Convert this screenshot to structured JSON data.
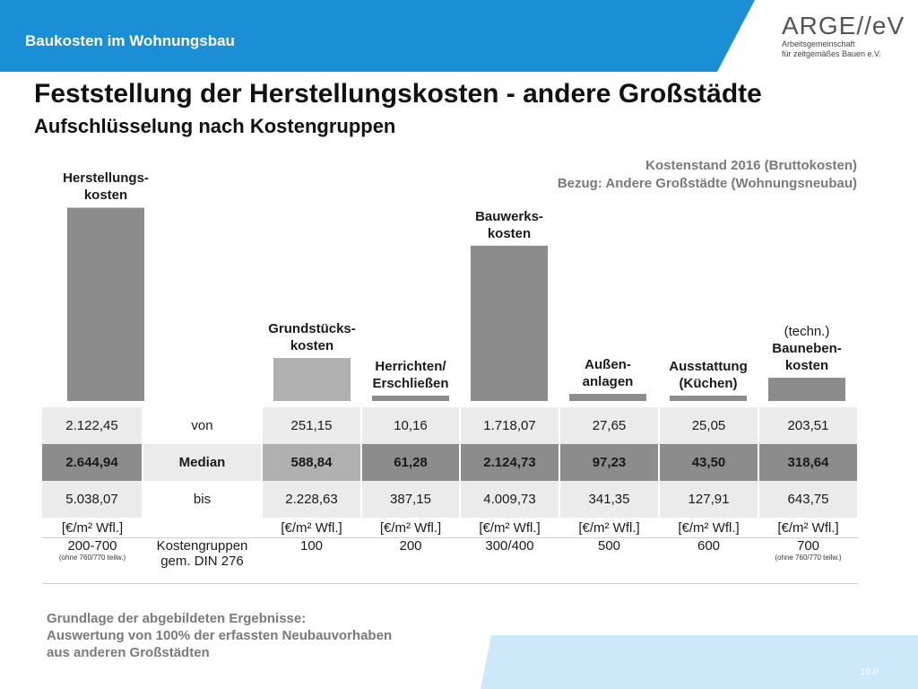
{
  "header": {
    "section_title": "Baukosten im Wohnungsbau",
    "logo_main": "ARGE//eV",
    "logo_line1": "Arbeitsgemeinschaft",
    "logo_line2": "für zeitgemäßes Bauen e.V.",
    "accent_color": "#1a8fd6"
  },
  "title": "Feststellung der Herstellungskosten - andere Großstädte",
  "subtitle": "Aufschlüsselung nach Kostengruppen",
  "meta_line1": "Kostenstand 2016 (Bruttokosten)",
  "meta_line2": "Bezug: Andere Großstädte (Wohnungsneubau)",
  "chart_data": {
    "type": "bar",
    "categories": [
      {
        "prefix": "",
        "line1": "Herstellungs-",
        "line2": "kosten"
      },
      {
        "prefix": "",
        "line1": "Grundstücks-",
        "line2": "kosten"
      },
      {
        "prefix": "",
        "line1": "Herrichten/",
        "line2": "Erschließen"
      },
      {
        "prefix": "",
        "line1": "Bauwerks-",
        "line2": "kosten"
      },
      {
        "prefix": "",
        "line1": "Außen-",
        "line2": "anlagen"
      },
      {
        "prefix": "",
        "line1": "Ausstattung",
        "line2": "(Küchen)"
      },
      {
        "prefix": "(techn.)",
        "line1": "Bauneben-",
        "line2": "kosten"
      }
    ],
    "values": [
      2644.94,
      588.84,
      61.28,
      2124.73,
      97.23,
      43.5,
      318.64
    ],
    "ylim": [
      0,
      2700
    ],
    "bar_colors": [
      "#8c8c8c",
      "#b0b0b0",
      "#8c8c8c",
      "#8c8c8c",
      "#8c8c8c",
      "#8c8c8c",
      "#8c8c8c"
    ]
  },
  "table": {
    "row_von": {
      "total": "2.122,45",
      "label": "von",
      "cells": [
        "251,15",
        "10,16",
        "1.718,07",
        "27,65",
        "25,05",
        "203,51"
      ]
    },
    "row_median": {
      "total": "2.644,94",
      "label": "Median",
      "cells": [
        "588,84",
        "61,28",
        "2.124,73",
        "97,23",
        "43,50",
        "318,64"
      ]
    },
    "row_bis": {
      "total": "5.038,07",
      "label": "bis",
      "cells": [
        "2.228,63",
        "387,15",
        "4.009,73",
        "341,35",
        "127,91",
        "643,75"
      ]
    },
    "unit": "[€/m² Wfl.]",
    "kg": {
      "total": "200-700",
      "total_note": "(ohne 760/770 teilw.)",
      "label_line1": "Kostengruppen",
      "label_line2": "gem. DIN 276",
      "cells": [
        "100",
        "200",
        "300/400",
        "500",
        "600",
        "700"
      ],
      "last_note": "(ohne 760/770 teilw.)"
    }
  },
  "footnote": {
    "line1": "Grundlage der abgebildeten Ergebnisse:",
    "line2": "Auswertung von 100% der erfassten Neubauvorhaben",
    "line3": "aus anderen Großstädten"
  },
  "page_number": "10 //"
}
